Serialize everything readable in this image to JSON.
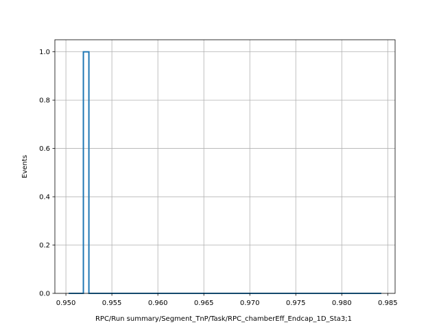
{
  "chart_data": {
    "type": "histogram",
    "title": "",
    "xlabel": "RPC/Run summary/Segment_TnP/Task/RPC_chamberEff_Endcap_1D_Sta3;1",
    "ylabel": "Events",
    "xlim": [
      0.9488,
      0.9858
    ],
    "ylim": [
      0,
      1.05
    ],
    "x_ticks": [
      0.95,
      0.955,
      0.96,
      0.965,
      0.97,
      0.975,
      0.98,
      0.985
    ],
    "x_tick_labels": [
      "0.950",
      "0.955",
      "0.960",
      "0.965",
      "0.970",
      "0.975",
      "0.980",
      "0.985"
    ],
    "y_ticks": [
      0.0,
      0.2,
      0.4,
      0.6,
      0.8,
      1.0
    ],
    "y_tick_labels": [
      "0.0",
      "0.2",
      "0.4",
      "0.6",
      "0.8",
      "1.0"
    ],
    "grid": true,
    "histtype": "step",
    "color": "#1f77b4",
    "bin_range": [
      0.9503,
      0.9843
    ],
    "bins": [
      {
        "x0": 0.9519,
        "x1": 0.9525,
        "count": 1
      }
    ]
  }
}
